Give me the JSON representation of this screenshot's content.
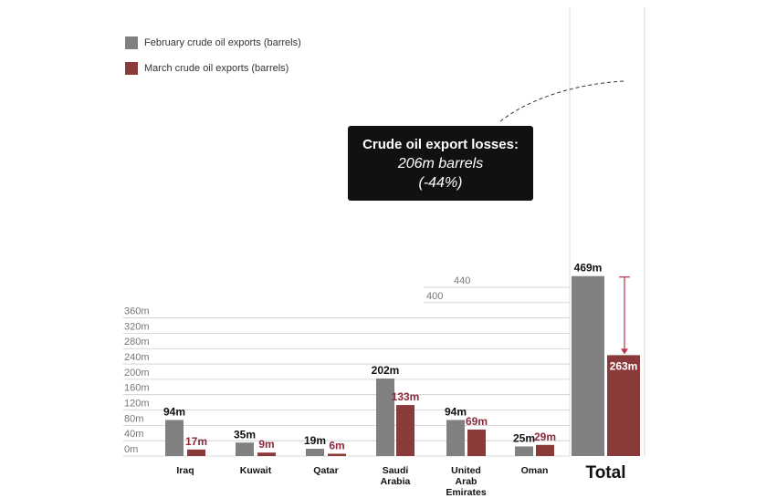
{
  "chart_data": {
    "type": "bar",
    "categories": [
      "Iraq",
      "Kuwait",
      "Qatar",
      "Saudi Arabia",
      "United Arab Emirates",
      "Oman",
      "Total"
    ],
    "category_label_lines": [
      [
        "Iraq"
      ],
      [
        "Kuwait"
      ],
      [
        "Qatar"
      ],
      [
        "Saudi",
        "Arabia"
      ],
      [
        "United",
        "Arab",
        "Emirates"
      ],
      [
        "Oman"
      ],
      [
        "Total"
      ]
    ],
    "series": [
      {
        "name": "February crude oil exports (barrels)",
        "color": "#808080",
        "values": [
          94,
          35,
          19,
          202,
          94,
          25,
          469
        ],
        "labels": [
          "94m",
          "35m",
          "19m",
          "202m",
          "94m",
          "25m",
          "469m"
        ]
      },
      {
        "name": "March crude oil exports (barrels)",
        "color": "#8b3a3a",
        "values": [
          17,
          9,
          6,
          133,
          69,
          29,
          263
        ],
        "labels": [
          "17m",
          "9m",
          "6m",
          "133m",
          "69m",
          "29m",
          "263m"
        ]
      }
    ],
    "yticks": [
      "0m",
      "40m",
      "80m",
      "120m",
      "160m",
      "200m",
      "240m",
      "280m",
      "320m",
      "360m",
      "400",
      "440"
    ],
    "ytick_values": [
      0,
      40,
      80,
      120,
      160,
      200,
      240,
      280,
      320,
      360,
      400,
      440
    ],
    "ylim": [
      0,
      469
    ],
    "grid": true,
    "legend_position": "top-left",
    "annotation": {
      "title": "Crude oil export losses:",
      "line1": "206m barrels",
      "line2": "(-44%)"
    }
  },
  "colors": {
    "february": "#808080",
    "march": "#8b3a3a",
    "march_label": "#8b2a3a",
    "text": "#111111",
    "grid": "#cccccc",
    "callout": "#111111"
  }
}
